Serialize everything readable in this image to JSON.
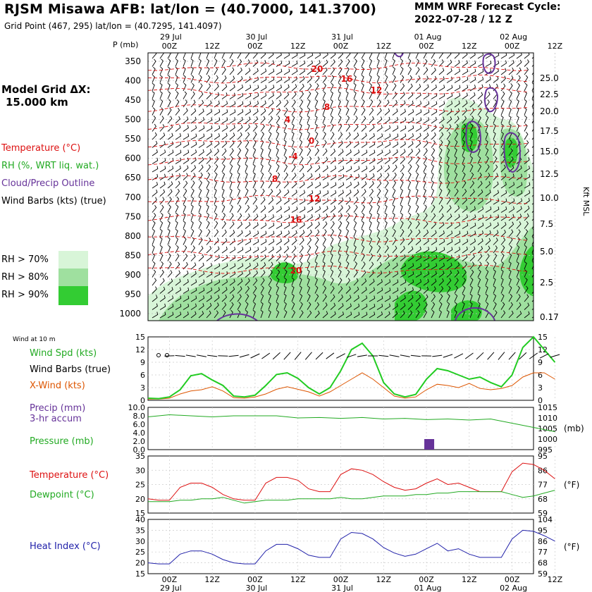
{
  "header": {
    "title": "RJSM Misawa AFB:  lat/lon = (40.7000, 141.3700)",
    "subtitle": "Grid Point (467, 295) lat/lon = (40.7295, 141.4097)",
    "cycle_label": "MMM WRF Forecast Cycle:",
    "cycle_value": "2022-07-28 / 12  Z"
  },
  "model_grid": {
    "label": "Model Grid ΔX:",
    "value": "15.000 km"
  },
  "legend": {
    "temperature": "Temperature (°C)",
    "rh": "RH (%, WRT liq. wat.)",
    "cloud": "Cloud/Precip Outline",
    "barbs": "Wind Barbs (kts) (true)",
    "rh70": "RH > 70%",
    "rh80": "RH > 80%",
    "rh90": "RH > 90%"
  },
  "colors": {
    "temperature": "#dd1111",
    "rh_text": "#22aa22",
    "cloud": "#663399",
    "rh70": "#d8f5d8",
    "rh80": "#9fe09f",
    "rh90": "#33cc33",
    "wind_speed": "#22cc22",
    "xwind": "#dd5500",
    "pressure": "#22aa22",
    "heat_index": "#2222aa"
  },
  "time_axis": {
    "days": [
      "29 Jul",
      "30 Jul",
      "31 Jul",
      "01 Aug",
      "02 Aug"
    ],
    "hours": [
      "00Z",
      "12Z",
      "00Z",
      "12Z",
      "00Z",
      "12Z",
      "00Z",
      "12Z",
      "00Z",
      "12Z"
    ]
  },
  "cross_section": {
    "pressure_unit": "P (mb)",
    "pressure_levels": [
      350,
      400,
      450,
      500,
      550,
      600,
      650,
      700,
      750,
      800,
      850,
      900,
      950,
      1000
    ],
    "height_unit": "Kft MSL",
    "height_labels": [
      "25.0",
      "22.5",
      "20.0",
      "17.5",
      "15.0",
      "12.5",
      "10.0",
      "7.5",
      "5.0",
      "2.5",
      "0.17"
    ],
    "temp_contour_labels": [
      "20",
      "16",
      "12",
      "8",
      "4",
      "0",
      "-4",
      "8",
      "12",
      "16",
      "20"
    ]
  },
  "panels": {
    "wind": {
      "caption": "Wind at 10 m",
      "label_speed": "Wind Spd (kts)",
      "label_barbs": "Wind Barbs (true)",
      "label_xwind": "X-Wind (kts)",
      "ticks": [
        "15",
        "12",
        "9",
        "6",
        "3",
        "0"
      ]
    },
    "precip": {
      "label_precip": "Precip (mm)",
      "label_accum": "3-hr accum",
      "label_pressure": "Pressure (mb)",
      "ticks_left": [
        "10.0",
        "8.0",
        "6.0",
        "4.0",
        "2.0",
        "0.0"
      ],
      "ticks_right": [
        "1015",
        "1010",
        "1005",
        "1000",
        "995"
      ],
      "right_unit": "(mb)"
    },
    "temp": {
      "label_temp": "Temperature (°C)",
      "label_dew": "Dewpoint (°C)",
      "ticks_left": [
        "35",
        "30",
        "25",
        "20",
        "15"
      ],
      "ticks_right": [
        "95",
        "86",
        "77",
        "68",
        "59"
      ],
      "right_unit": "(°F)"
    },
    "heat": {
      "label": "Heat Index (°C)",
      "ticks_left": [
        "40",
        "35",
        "30",
        "25",
        "20",
        "15"
      ],
      "ticks_right": [
        "104",
        "95",
        "86",
        "77",
        "68",
        "59"
      ],
      "right_unit": "(°F)"
    }
  },
  "chart_data": [
    {
      "type": "line",
      "name": "Wind at 10 m",
      "x": [
        "07-28 18Z",
        "07-28 21Z",
        "07-29 00Z",
        "07-29 03Z",
        "07-29 06Z",
        "07-29 09Z",
        "07-29 12Z",
        "07-29 15Z",
        "07-29 18Z",
        "07-29 21Z",
        "07-30 00Z",
        "07-30 03Z",
        "07-30 06Z",
        "07-30 09Z",
        "07-30 12Z",
        "07-30 15Z",
        "07-30 18Z",
        "07-30 21Z",
        "07-31 00Z",
        "07-31 03Z",
        "07-31 06Z",
        "07-31 09Z",
        "07-31 12Z",
        "07-31 15Z",
        "07-31 18Z",
        "07-31 21Z",
        "08-01 00Z",
        "08-01 03Z",
        "08-01 06Z",
        "08-01 09Z",
        "08-01 12Z",
        "08-01 15Z",
        "08-01 18Z",
        "08-01 21Z",
        "08-02 00Z",
        "08-02 03Z",
        "08-02 06Z",
        "08-02 09Z",
        "08-02 12Z"
      ],
      "series": [
        {
          "name": "Wind Spd (kts)",
          "values": [
            0.5,
            0.4,
            0.8,
            2.5,
            5.8,
            6.3,
            4.8,
            3.5,
            1.0,
            0.8,
            1.2,
            3.5,
            6.1,
            6.5,
            5.2,
            3.0,
            1.5,
            3.0,
            7.0,
            12.0,
            13.5,
            10.5,
            4.2,
            1.5,
            0.8,
            1.4,
            5.0,
            7.5,
            7.0,
            6.0,
            5.0,
            5.5,
            4.2,
            3.2,
            6.0,
            12.5,
            15.0,
            12.0,
            9.0
          ]
        },
        {
          "name": "X-Wind (kts)",
          "values": [
            0.3,
            0.3,
            0.5,
            1.5,
            2.2,
            2.5,
            3.2,
            2.2,
            0.6,
            0.5,
            0.8,
            1.5,
            2.6,
            3.2,
            2.6,
            2.0,
            1.0,
            2.0,
            3.5,
            5.0,
            6.5,
            5.0,
            3.0,
            1.0,
            0.5,
            0.8,
            2.5,
            3.8,
            3.5,
            3.0,
            4.0,
            2.8,
            2.5,
            2.8,
            3.5,
            5.5,
            6.5,
            6.5,
            5.0
          ]
        }
      ],
      "ylim": [
        0,
        15
      ]
    },
    {
      "type": "bar",
      "name": "Precip (mm) 3-hr accum",
      "x": [
        "08-01 00Z"
      ],
      "values": [
        2.5
      ],
      "ylim": [
        0,
        10
      ]
    },
    {
      "type": "line",
      "name": "Pressure (mb)",
      "x": [
        "07-28 18Z",
        "07-29 00Z",
        "07-29 06Z",
        "07-29 12Z",
        "07-29 18Z",
        "07-30 00Z",
        "07-30 06Z",
        "07-30 12Z",
        "07-30 18Z",
        "07-31 00Z",
        "07-31 06Z",
        "07-31 12Z",
        "07-31 18Z",
        "08-01 00Z",
        "08-01 06Z",
        "08-01 12Z",
        "08-01 18Z",
        "08-02 00Z",
        "08-02 06Z",
        "08-02 12Z"
      ],
      "series": [
        {
          "name": "Pressure (mb)",
          "values": [
            1010.5,
            1011.5,
            1011.0,
            1010.5,
            1011.0,
            1011.0,
            1011.0,
            1010.0,
            1010.2,
            1009.8,
            1010.2,
            1009.5,
            1009.8,
            1009.2,
            1009.5,
            1009.0,
            1009.5,
            1007.5,
            1005.5,
            1003.5
          ]
        }
      ],
      "ylim": [
        995,
        1015
      ]
    },
    {
      "type": "line",
      "name": "Temperature / Dewpoint",
      "x": [
        "07-28 18Z",
        "07-28 21Z",
        "07-29 00Z",
        "07-29 03Z",
        "07-29 06Z",
        "07-29 09Z",
        "07-29 12Z",
        "07-29 15Z",
        "07-29 18Z",
        "07-29 21Z",
        "07-30 00Z",
        "07-30 03Z",
        "07-30 06Z",
        "07-30 09Z",
        "07-30 12Z",
        "07-30 15Z",
        "07-30 18Z",
        "07-30 21Z",
        "07-31 00Z",
        "07-31 03Z",
        "07-31 06Z",
        "07-31 09Z",
        "07-31 12Z",
        "07-31 15Z",
        "07-31 18Z",
        "07-31 21Z",
        "08-01 00Z",
        "08-01 03Z",
        "08-01 06Z",
        "08-01 09Z",
        "08-01 12Z",
        "08-01 15Z",
        "08-01 18Z",
        "08-01 21Z",
        "08-02 00Z",
        "08-02 03Z",
        "08-02 06Z",
        "08-02 09Z",
        "08-02 12Z"
      ],
      "series": [
        {
          "name": "Temperature (°C)",
          "values": [
            20,
            19.5,
            19.5,
            24,
            25.5,
            25.5,
            24,
            21.5,
            20,
            19.5,
            19.5,
            25.5,
            27.5,
            27.5,
            26.5,
            23.5,
            22.5,
            22.5,
            28.5,
            30.5,
            30,
            28.5,
            26,
            24,
            23,
            23.5,
            25.5,
            27,
            25,
            25.5,
            24,
            22.5,
            22.5,
            22.5,
            29.5,
            32.5,
            32,
            30,
            27
          ]
        },
        {
          "name": "Dewpoint (°C)",
          "values": [
            19,
            19,
            19,
            19.5,
            19.5,
            20,
            20,
            20.5,
            19.5,
            18.5,
            19,
            19.5,
            19.5,
            19.5,
            20,
            20,
            20,
            20,
            20.5,
            20,
            20,
            20.5,
            21,
            21,
            21,
            21.5,
            21.5,
            22,
            22,
            22.5,
            22.5,
            22.5,
            22.5,
            22.5,
            21.5,
            20.5,
            21,
            22,
            23
          ]
        }
      ],
      "ylim": [
        15,
        35
      ]
    },
    {
      "type": "line",
      "name": "Heat Index",
      "x": [
        "07-28 18Z",
        "07-28 21Z",
        "07-29 00Z",
        "07-29 03Z",
        "07-29 06Z",
        "07-29 09Z",
        "07-29 12Z",
        "07-29 15Z",
        "07-29 18Z",
        "07-29 21Z",
        "07-30 00Z",
        "07-30 03Z",
        "07-30 06Z",
        "07-30 09Z",
        "07-30 12Z",
        "07-30 15Z",
        "07-30 18Z",
        "07-30 21Z",
        "07-31 00Z",
        "07-31 03Z",
        "07-31 06Z",
        "07-31 09Z",
        "07-31 12Z",
        "07-31 15Z",
        "07-31 18Z",
        "07-31 21Z",
        "08-01 00Z",
        "08-01 03Z",
        "08-01 06Z",
        "08-01 09Z",
        "08-01 12Z",
        "08-01 15Z",
        "08-01 18Z",
        "08-01 21Z",
        "08-02 00Z",
        "08-02 03Z",
        "08-02 06Z",
        "08-02 09Z",
        "08-02 12Z"
      ],
      "series": [
        {
          "name": "Heat Index (°C)",
          "values": [
            20,
            19.5,
            19.5,
            24,
            25.5,
            25.5,
            24,
            21.5,
            20,
            19.5,
            19.5,
            25.5,
            28.5,
            28.5,
            26.5,
            23.5,
            22.5,
            22.5,
            31,
            34,
            33.5,
            31,
            27,
            24.5,
            23,
            24,
            26.5,
            29,
            25.5,
            26.5,
            24,
            22.5,
            22.5,
            22.5,
            31,
            35,
            34.5,
            32.5,
            30
          ]
        }
      ],
      "ylim": [
        15,
        40
      ]
    }
  ]
}
